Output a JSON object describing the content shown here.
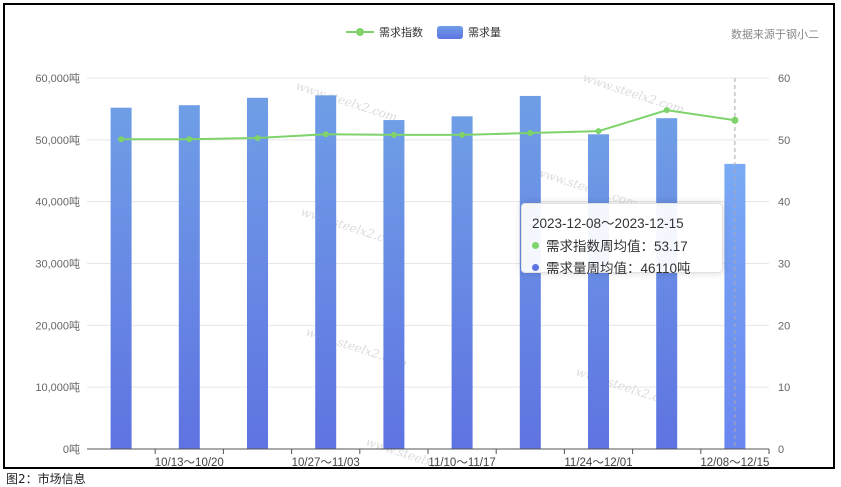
{
  "chart_data": {
    "type": "bar",
    "categories": [
      "",
      "10/13～10/20",
      "",
      "10/27～11/03",
      "",
      "11/10～11/17",
      "",
      "11/24～12/01",
      "",
      "12/08～12/15"
    ],
    "series": [
      {
        "name": "需求量",
        "type": "bar",
        "axis": "left",
        "values": [
          55200,
          55600,
          56800,
          57200,
          53200,
          53800,
          57100,
          50900,
          53500,
          46110
        ]
      },
      {
        "name": "需求指数",
        "type": "line",
        "axis": "right",
        "values": [
          50.1,
          50.1,
          50.3,
          50.9,
          50.8,
          50.8,
          51.1,
          51.4,
          54.8,
          53.17
        ]
      }
    ],
    "y_left": {
      "min": 0,
      "max": 60000,
      "ticks": [
        "0吨",
        "10,000吨",
        "20,000吨",
        "30,000吨",
        "40,000吨",
        "50,000吨",
        "60,000吨"
      ]
    },
    "y_right": {
      "min": 0,
      "max": 60,
      "ticks": [
        "0",
        "10",
        "20",
        "30",
        "40",
        "50",
        "60"
      ]
    },
    "grid": true,
    "legend": "top-center",
    "colors": {
      "bar_top": "#6f9ee6",
      "bar_bottom": "#5f73e2",
      "bar_highlight_top": "#7aaaf5",
      "bar_highlight_bottom": "#6a86f0",
      "line": "#7ed36b",
      "grid": "#e6e6e6"
    }
  },
  "legend": {
    "line_label": "需求指数",
    "bar_label": "需求量"
  },
  "source_label": "数据来源于钢小二",
  "tooltip": {
    "title": "2023-12-08～2023-12-15",
    "row1_label": "需求指数周均值：53.17",
    "row2_label": "需求量周均值：46110吨",
    "row1_color": "#7ed36b",
    "row2_color": "#5f73e2"
  },
  "watermark": {
    "text": "www.steelx2.com"
  },
  "caption": "图2：市场信息"
}
